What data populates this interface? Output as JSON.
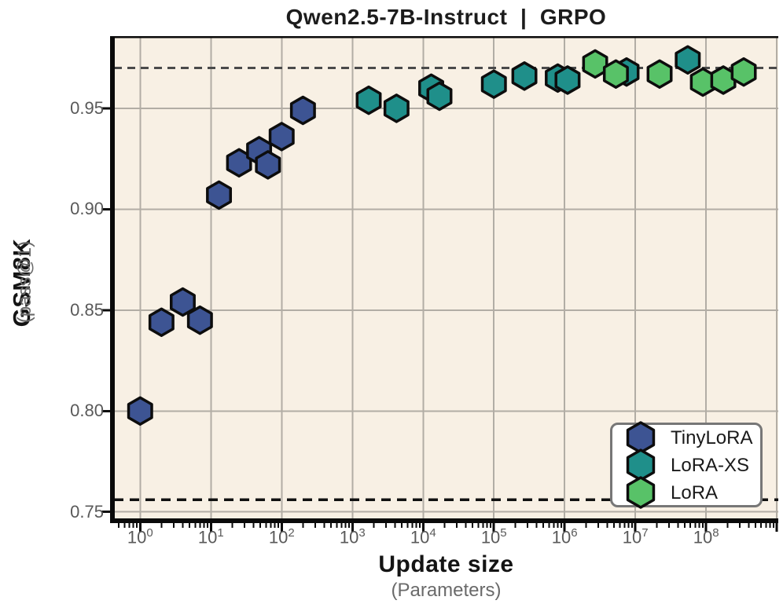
{
  "title": "Qwen2.5-7B-Instruct  |  GRPO",
  "chart_data": {
    "type": "scatter",
    "marker": "hexagon",
    "title": "Qwen2.5-7B-Instruct  |  GRPO",
    "xlabel": "Update size",
    "xlabel_sub": "(Parameters)",
    "ylabel": "GSM8K",
    "ylabel_sub": "(pass@1)",
    "x_scale": "log",
    "x_range_log10": [
      -0.37,
      9.02
    ],
    "y_range": [
      0.746,
      0.985
    ],
    "x_tick_exponents": [
      0,
      1,
      2,
      3,
      4,
      5,
      6,
      7,
      8
    ],
    "x_tick_base": "10",
    "y_ticks": [
      {
        "label": "0.95",
        "value": 0.95
      },
      {
        "label": "0.90",
        "value": 0.9
      },
      {
        "label": "0.85",
        "value": 0.85
      },
      {
        "label": "0.80",
        "value": 0.8
      },
      {
        "label": "0.75",
        "value": 0.75
      }
    ],
    "grid": true,
    "legend_position": "lower right",
    "series": [
      {
        "name": "TinyLoRA",
        "color": "#3d5493",
        "points": [
          [
            1,
            0.8
          ],
          [
            2,
            0.844
          ],
          [
            4,
            0.854
          ],
          [
            7,
            0.845
          ],
          [
            13,
            0.907
          ],
          [
            25,
            0.923
          ],
          [
            48,
            0.929
          ],
          [
            64,
            0.922
          ],
          [
            100,
            0.936
          ],
          [
            200,
            0.949
          ]
        ]
      },
      {
        "name": "LoRA-XS",
        "color": "#1f8f8a",
        "points": [
          [
            1700,
            0.954
          ],
          [
            4200,
            0.95
          ],
          [
            13000,
            0.96
          ],
          [
            17000,
            0.956
          ],
          [
            100000,
            0.962
          ],
          [
            270000,
            0.966
          ],
          [
            800000,
            0.965
          ],
          [
            1100000,
            0.964
          ],
          [
            7500000,
            0.968
          ],
          [
            55000000,
            0.974
          ]
        ]
      },
      {
        "name": "LoRA",
        "color": "#58c268",
        "points": [
          [
            2700000,
            0.972
          ],
          [
            5300000,
            0.967
          ],
          [
            22000000,
            0.967
          ],
          [
            90000000,
            0.963
          ],
          [
            175000000,
            0.964
          ],
          [
            340000000,
            0.968
          ]
        ]
      }
    ],
    "reference_lines": [
      {
        "value": 0.97,
        "color": "#4a4a4a",
        "style": "dashed",
        "width": 3
      },
      {
        "value": 0.756,
        "color": "#111111",
        "style": "dashed",
        "width": 3.5
      }
    ]
  },
  "legend": {
    "items": [
      {
        "label": "TinyLoRA",
        "color": "#3d5493"
      },
      {
        "label": "LoRA-XS",
        "color": "#1f8f8a"
      },
      {
        "label": "LoRA",
        "color": "#58c268"
      }
    ]
  },
  "colors": {
    "plot_bg": "#f8f0e4",
    "grid": "#b2ada5",
    "axis": "#0a0a0a",
    "tick_label": "#595959",
    "marker_outline": "#0d0d0d",
    "legend_border": "#777777"
  }
}
